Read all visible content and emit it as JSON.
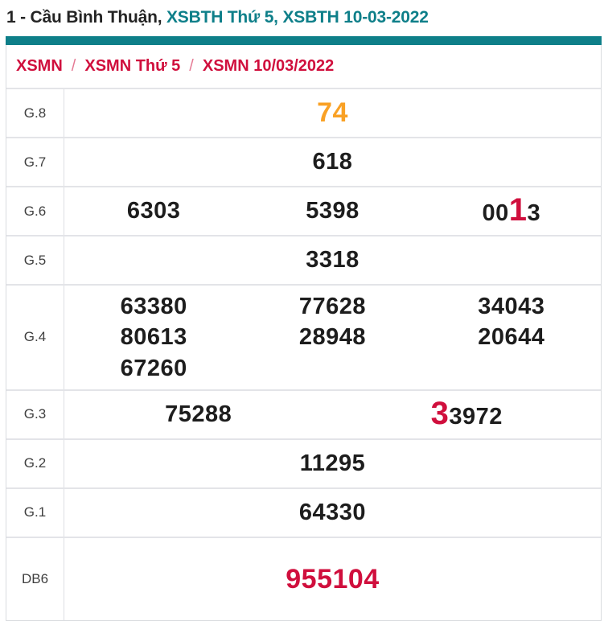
{
  "colors": {
    "teal": "#0e7f89",
    "red": "#d00f3d",
    "orange": "#f9a125",
    "ink": "#1d1d1d",
    "border": "#e3e4e8"
  },
  "header": {
    "title_prefix": "1 - Cầu Bình Thuận, ",
    "title_highlight": "XSBTH Thứ 5, XSBTH 10-03-2022"
  },
  "breadcrumb": {
    "separator": "/",
    "items": [
      "XSMN",
      "XSMN Thứ 5",
      "XSMN 10/03/2022"
    ]
  },
  "table": {
    "rows": [
      {
        "label": "G.8",
        "columns": 1,
        "values": [
          {
            "text": "74",
            "color": "orange",
            "size": "big"
          }
        ]
      },
      {
        "label": "G.7",
        "columns": 1,
        "values": [
          {
            "text": "618"
          }
        ]
      },
      {
        "label": "G.6",
        "columns": 3,
        "values": [
          {
            "text": "6303"
          },
          {
            "text": "5398"
          },
          {
            "text": "0013",
            "highlight_digits": [
              2
            ]
          }
        ]
      },
      {
        "label": "G.5",
        "columns": 1,
        "values": [
          {
            "text": "3318"
          }
        ]
      },
      {
        "label": "G.4",
        "columns": 3,
        "values": [
          {
            "text": "63380"
          },
          {
            "text": "77628"
          },
          {
            "text": "34043"
          },
          {
            "text": "80613"
          },
          {
            "text": "28948"
          },
          {
            "text": "20644"
          },
          {
            "text": "67260"
          }
        ]
      },
      {
        "label": "G.3",
        "columns": 2,
        "values": [
          {
            "text": "75288"
          },
          {
            "text": "33972",
            "highlight_digits": [
              0
            ]
          }
        ]
      },
      {
        "label": "G.2",
        "columns": 1,
        "values": [
          {
            "text": "11295"
          }
        ]
      },
      {
        "label": "G.1",
        "columns": 1,
        "values": [
          {
            "text": "64330"
          }
        ]
      },
      {
        "label": "DB6",
        "columns": 1,
        "values": [
          {
            "text": "955104",
            "color": "red",
            "size": "big"
          }
        ]
      }
    ]
  }
}
